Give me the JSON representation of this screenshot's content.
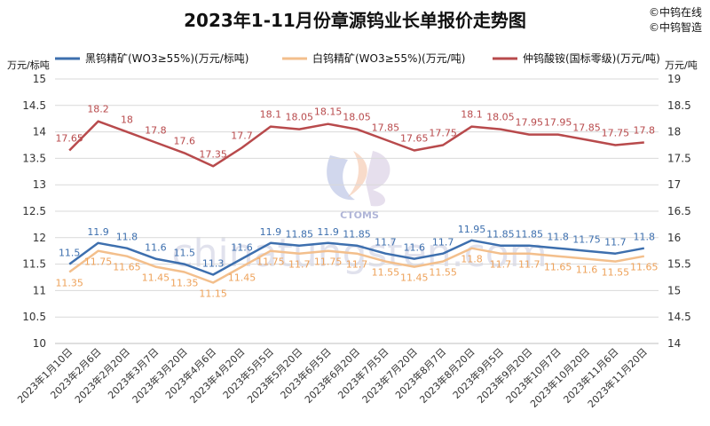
{
  "chart_data": {
    "type": "line",
    "title": "2023年1-11月份章源钨业长单报价走势图",
    "brand_lines": [
      "©中钨在线",
      "©中钨智造"
    ],
    "watermark_text": "chinatungsten.com",
    "watermark_logo_text": "CTOMS",
    "left_axis": {
      "unit": "万元/标吨",
      "ylim": [
        10,
        15
      ],
      "ticks": [
        "10",
        "10.5",
        "11",
        "11.5",
        "12",
        "12.5",
        "13",
        "13.5",
        "14",
        "14.5",
        "15"
      ]
    },
    "right_axis": {
      "unit": "万元/吨",
      "ylim": [
        14,
        19
      ],
      "ticks": [
        "14",
        "14.5",
        "15",
        "15.5",
        "16",
        "16.5",
        "17",
        "17.5",
        "18",
        "18.5",
        "19"
      ]
    },
    "categories": [
      "2023年1月10日",
      "2023年2月6日",
      "2023年2月20日",
      "2023年3月7日",
      "2023年3月20日",
      "2023年4月6日",
      "2023年4月20日",
      "2023年5月5日",
      "2023年5月20日",
      "2023年6月5日",
      "2023年6月20日",
      "2023年7月5日",
      "2023年7月20日",
      "2023年8月7日",
      "2023年8月20日",
      "2023年9月5日",
      "2023年9月20日",
      "2023年10月7日",
      "2023年10月20日",
      "2023年11月6日",
      "2023年11月20日"
    ],
    "grid": true,
    "legend_position": "top",
    "series": [
      {
        "name": "黑钨精矿(WO3≥55%)(万元/标吨)",
        "axis": "left",
        "color": "#3d6fae",
        "label_color": "#3d6fae",
        "values": [
          11.5,
          11.9,
          11.8,
          11.6,
          11.5,
          11.3,
          11.6,
          11.9,
          11.85,
          11.9,
          11.85,
          11.7,
          11.6,
          11.7,
          11.95,
          11.85,
          11.85,
          11.8,
          11.75,
          11.7,
          11.8
        ],
        "labels": [
          "11.5",
          "11.9",
          "11.8",
          "11.6",
          "11.5",
          "11.3",
          "11.6",
          "11.9",
          "11.85",
          "11.9",
          "11.85",
          "11.7",
          "11.6",
          "11.7",
          "11.95",
          "11.85",
          "11.85",
          "11.8",
          "11.75",
          "11.7",
          "11.8"
        ]
      },
      {
        "name": "白钨精矿(WO3≥55%)(万元/吨)",
        "axis": "left",
        "color": "#f3bf8c",
        "label_color": "#eea25a",
        "values": [
          11.35,
          11.75,
          11.65,
          11.45,
          11.35,
          11.15,
          11.45,
          11.75,
          11.7,
          11.75,
          11.7,
          11.55,
          11.45,
          11.55,
          11.8,
          11.7,
          11.7,
          11.65,
          11.6,
          11.55,
          11.65
        ],
        "labels": [
          "11.35",
          "11.75",
          "11.65",
          "11.45",
          "11.35",
          "11.15",
          "11.45",
          "11.75",
          "11.7",
          "11.75",
          "11.7",
          "11.55",
          "11.45",
          "11.55",
          "11.8",
          "11.7",
          "11.7",
          "11.65",
          "11.6",
          "11.55",
          "11.65"
        ]
      },
      {
        "name": "仲钨酸铵(国标零级)(万元/吨)",
        "axis": "right",
        "color": "#b84a4c",
        "label_color": "#b84a4c",
        "values": [
          17.65,
          18.2,
          18,
          17.8,
          17.6,
          17.35,
          17.7,
          18.1,
          18.05,
          18.15,
          18.05,
          17.85,
          17.65,
          17.75,
          18.1,
          18.05,
          17.95,
          17.95,
          17.85,
          17.75,
          17.8
        ],
        "labels": [
          "17.65",
          "18.2",
          "18",
          "17.8",
          "17.6",
          "17.35",
          "17.7",
          "18.1",
          "18.05",
          "18.15",
          "18.05",
          "17.85",
          "17.65",
          "17.75",
          "18.1",
          "18.05",
          "17.95",
          "17.95",
          "17.85",
          "17.75",
          "17.8"
        ]
      }
    ]
  }
}
